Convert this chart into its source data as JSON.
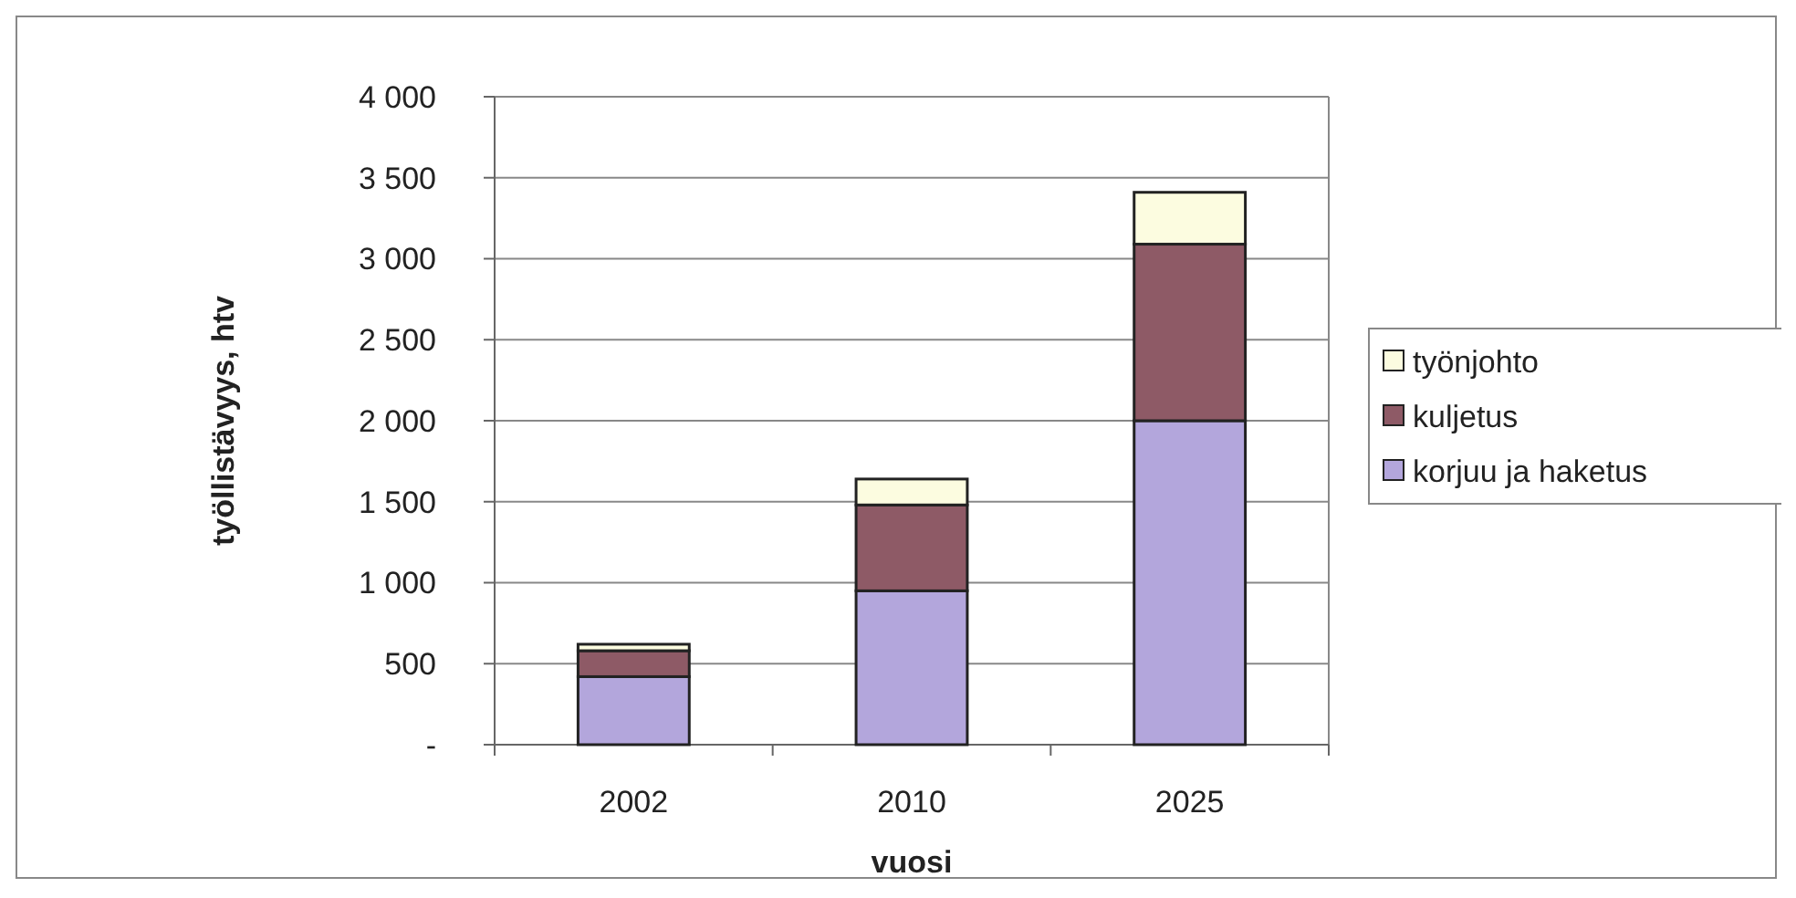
{
  "chart_data": {
    "type": "bar",
    "stacked": true,
    "xlabel": "vuosi",
    "ylabel": "työllistävyys, htv",
    "categories": [
      "2002",
      "2010",
      "2025"
    ],
    "series": [
      {
        "name": "korjuu ja haketus",
        "color": "#b3a6dc",
        "values": [
          420,
          950,
          2000
        ]
      },
      {
        "name": "kuljetus",
        "color": "#8e5a66",
        "values": [
          160,
          530,
          1090
        ]
      },
      {
        "name": "työnjohto",
        "color": "#fcfce0",
        "values": [
          40,
          160,
          320
        ]
      }
    ],
    "ylim": [
      0,
      4000
    ],
    "yticks": [
      {
        "value": 0,
        "label": "-"
      },
      {
        "value": 500,
        "label": "500"
      },
      {
        "value": 1000,
        "label": "1 000"
      },
      {
        "value": 1500,
        "label": "1 500"
      },
      {
        "value": 2000,
        "label": "2 000"
      },
      {
        "value": 2500,
        "label": "2 500"
      },
      {
        "value": 3000,
        "label": "3 000"
      },
      {
        "value": 3500,
        "label": "3 500"
      },
      {
        "value": 4000,
        "label": "4 000"
      }
    ],
    "grid": "y",
    "legend": "right"
  }
}
